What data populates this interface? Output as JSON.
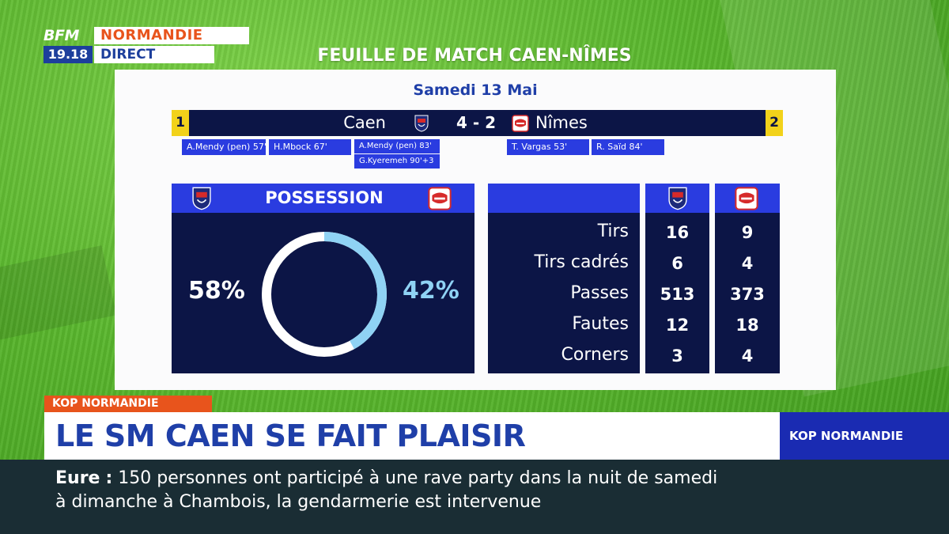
{
  "channel": {
    "brand": "BFM",
    "region": "NORMANDIE",
    "time": "19.18",
    "live": "DIRECT",
    "accent": "#e8541c",
    "primary": "#1d3f9c"
  },
  "sheet_title": "FEUILLE DE MATCH CAEN-NÎMES",
  "match": {
    "date": "Samedi 13 Mai",
    "home": {
      "name": "Caen",
      "rank": "1",
      "crest": "caen-crest-icon"
    },
    "away": {
      "name": "Nîmes",
      "rank": "2",
      "crest": "nimes-crest-icon"
    },
    "score": "4 - 2",
    "home_scorers": [
      "A.Mendy (pen) 57'",
      "H.Mbock 67'",
      "A.Mendy (pen) 83'",
      "G.Kyeremeh 90'+3"
    ],
    "away_scorers": [
      "T. Vargas 53'",
      "R. Saïd 84'"
    ]
  },
  "possession": {
    "title": "POSSESSION",
    "home_label": "58%",
    "away_label": "42%",
    "home": 58,
    "away": 42,
    "home_color": "#ffffff",
    "away_color": "#8fd2f4"
  },
  "stats": [
    {
      "label": "Tirs",
      "home": "16",
      "away": "9"
    },
    {
      "label": "Tirs cadrés",
      "home": "6",
      "away": "4"
    },
    {
      "label": "Passes",
      "home": "513",
      "away": "373"
    },
    {
      "label": "Fautes",
      "home": "12",
      "away": "18"
    },
    {
      "label": "Corners",
      "home": "3",
      "away": "4"
    }
  ],
  "lower_third": {
    "tag": "KOP NORMANDIE",
    "headline": "LE SM CAEN SE FAIT PLAISIR",
    "program": "KOP NORMANDIE"
  },
  "ticker": {
    "place": "Eure",
    "separator": ":",
    "line1": "150 personnes ont participé à une rave party dans la nuit de samedi",
    "line2": "à dimanche à Chambois, la gendarmerie est intervenue"
  }
}
